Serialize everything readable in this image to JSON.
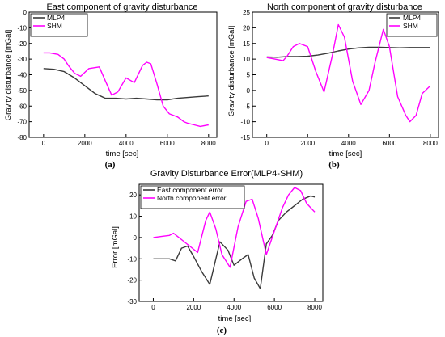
{
  "panel_labels": [
    "(a)",
    "(b)",
    "(c)"
  ],
  "colors": {
    "MLP4": "#3a3a3a",
    "SHM": "#ff00ff",
    "axis": "#000000"
  },
  "chart_data": [
    {
      "type": "line",
      "title": "East component of gravity disturbance",
      "xlabel": "time [sec]",
      "ylabel": "Gravity disturbance [mGal]",
      "xlim": [
        -700,
        8400
      ],
      "ylim": [
        -80,
        0
      ],
      "xticks": [
        0,
        2000,
        4000,
        6000,
        8000
      ],
      "yticks": [
        -80,
        -70,
        -60,
        -50,
        -40,
        -30,
        -20,
        -10,
        0
      ],
      "legend": "top-left",
      "series": [
        {
          "name": "MLP4",
          "color": "#3a3a3a",
          "x": [
            0,
            500,
            1000,
            1500,
            2000,
            2500,
            3000,
            3500,
            4000,
            4500,
            5000,
            5500,
            6000,
            6500,
            7000,
            7500,
            8000
          ],
          "y": [
            -36,
            -36.5,
            -38,
            -42,
            -47,
            -52,
            -55,
            -55,
            -55.5,
            -55,
            -55.5,
            -56,
            -56,
            -55,
            -54.5,
            -54,
            -53.5
          ]
        },
        {
          "name": "SHM",
          "color": "#ff00ff",
          "x": [
            0,
            300,
            700,
            1000,
            1200,
            1500,
            1800,
            2200,
            2700,
            3000,
            3300,
            3600,
            4000,
            4400,
            4800,
            5000,
            5200,
            5500,
            5800,
            6100,
            6500,
            6800,
            7000,
            7300,
            7600,
            8000
          ],
          "y": [
            -26,
            -26,
            -27,
            -30,
            -34,
            -39,
            -41,
            -36,
            -35,
            -44,
            -53,
            -51,
            -42,
            -45,
            -34,
            -32,
            -33,
            -46,
            -60,
            -65,
            -67,
            -70,
            -71,
            -72,
            -73,
            -72
          ]
        }
      ]
    },
    {
      "type": "line",
      "title": "North component of gravity disturbance",
      "xlabel": "time [sec]",
      "ylabel": "Gravity disturbance [mGal]",
      "xlim": [
        -700,
        8400
      ],
      "ylim": [
        -15,
        25
      ],
      "xticks": [
        0,
        2000,
        4000,
        6000,
        8000
      ],
      "yticks": [
        -15,
        -10,
        -5,
        0,
        5,
        10,
        15,
        20,
        25
      ],
      "legend": "top-right",
      "series": [
        {
          "name": "MLP4",
          "color": "#3a3a3a",
          "x": [
            0,
            500,
            1000,
            1500,
            2000,
            2500,
            3000,
            3500,
            4000,
            4500,
            5000,
            5500,
            6000,
            6500,
            7000,
            7500,
            8000
          ],
          "y": [
            10.7,
            10.6,
            10.8,
            10.8,
            10.9,
            11.3,
            11.9,
            12.6,
            13.2,
            13.6,
            13.8,
            13.8,
            13.7,
            13.6,
            13.7,
            13.7,
            13.7
          ]
        },
        {
          "name": "SHM",
          "color": "#ff00ff",
          "x": [
            0,
            400,
            800,
            1000,
            1300,
            1600,
            2000,
            2400,
            2800,
            3200,
            3500,
            3800,
            4200,
            4600,
            5000,
            5300,
            5700,
            6000,
            6400,
            6800,
            7000,
            7300,
            7600,
            8000
          ],
          "y": [
            10.5,
            10,
            9.5,
            11,
            14,
            15,
            14,
            6,
            -0.5,
            11,
            21,
            17,
            3,
            -4.5,
            0,
            9,
            19.5,
            14,
            -2,
            -8,
            -10,
            -8,
            -1,
            1.5
          ]
        }
      ]
    },
    {
      "type": "line",
      "title": "Gravity Disturbance Error(MLP4-SHM)",
      "xlabel": "time [sec]",
      "ylabel": "Error [mGal]",
      "xlim": [
        -700,
        8400
      ],
      "ylim": [
        -30,
        25
      ],
      "xticks": [
        0,
        2000,
        4000,
        6000,
        8000
      ],
      "yticks": [
        -30,
        -20,
        -10,
        0,
        10,
        20
      ],
      "legend": "top-left",
      "series": [
        {
          "name": "East component error",
          "color": "#3a3a3a",
          "x": [
            0,
            400,
            800,
            1100,
            1400,
            1700,
            2000,
            2400,
            2800,
            3100,
            3300,
            3700,
            4000,
            4400,
            4700,
            5000,
            5300,
            5600,
            5900,
            6200,
            6600,
            7000,
            7400,
            7800,
            8000
          ],
          "y": [
            -10,
            -10,
            -10,
            -11,
            -5,
            -4,
            -9,
            -16,
            -22,
            -10,
            -2,
            -6,
            -13,
            -10,
            -8,
            -19,
            -24,
            -3,
            1,
            8,
            12,
            15,
            18,
            19.5,
            19
          ]
        },
        {
          "name": "North component error",
          "color": "#ff00ff",
          "x": [
            0,
            400,
            800,
            1000,
            1400,
            1800,
            2200,
            2600,
            2800,
            3100,
            3400,
            3800,
            4200,
            4600,
            4900,
            5200,
            5600,
            6000,
            6400,
            6700,
            7000,
            7300,
            7600,
            8000
          ],
          "y": [
            0,
            0.5,
            1,
            2,
            -1,
            -4,
            -7,
            8,
            12,
            4,
            -8,
            -14,
            5,
            17,
            18,
            9,
            -8,
            3,
            14,
            20,
            23.5,
            22,
            16,
            12
          ]
        }
      ]
    }
  ]
}
